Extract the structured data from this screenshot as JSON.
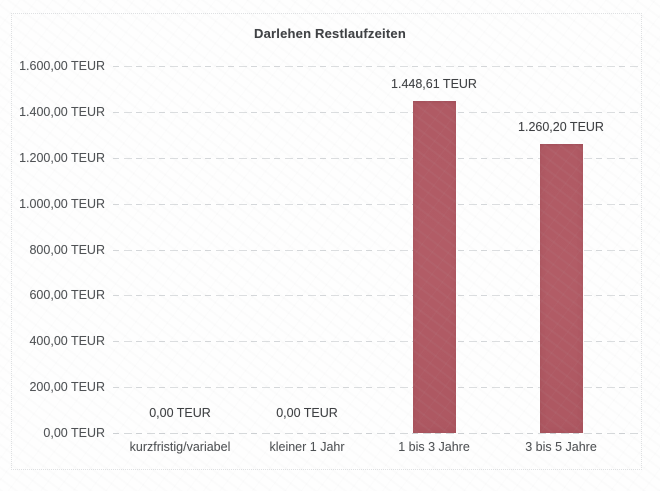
{
  "chart_data": {
    "type": "bar",
    "title": "Darlehen Restlaufzeiten",
    "categories": [
      "kurzfristig/variabel",
      "kleiner 1 Jahr",
      "1 bis 3 Jahre",
      "3 bis 5 Jahre"
    ],
    "values": [
      0,
      0,
      1448.61,
      1260.2
    ],
    "value_labels": [
      "0,00 TEUR",
      "0,00 TEUR",
      "1.448,61 TEUR",
      "1.260,20 TEUR"
    ],
    "unit": "TEUR",
    "y_ticks": [
      {
        "value": 0,
        "label": "0,00 TEUR"
      },
      {
        "value": 200,
        "label": "200,00 TEUR"
      },
      {
        "value": 400,
        "label": "400,00 TEUR"
      },
      {
        "value": 600,
        "label": "600,00 TEUR"
      },
      {
        "value": 800,
        "label": "800,00 TEUR"
      },
      {
        "value": 1000,
        "label": "1.000,00 TEUR"
      },
      {
        "value": 1200,
        "label": "1.200,00 TEUR"
      },
      {
        "value": 1400,
        "label": "1.400,00 TEUR"
      },
      {
        "value": 1600,
        "label": "1.600,00 TEUR"
      }
    ],
    "ylim": [
      0,
      1600
    ],
    "grid": true,
    "legend": "none",
    "colors": {
      "bar": "#b05a64",
      "grid": "#cdd0d3",
      "title_text": "#3e4043",
      "axis_text": "#4e5154",
      "data_label_text": "#3d3f42",
      "background": "#fefefe"
    }
  }
}
